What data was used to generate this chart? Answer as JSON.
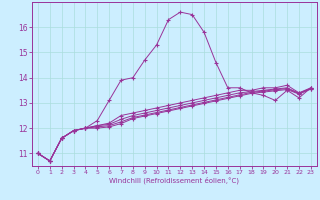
{
  "title": "",
  "xlabel": "Windchill (Refroidissement éolien,°C)",
  "ylabel": "",
  "background_color": "#cceeff",
  "line_color": "#993399",
  "xlim": [
    -0.5,
    23.5
  ],
  "ylim": [
    10.5,
    17.0
  ],
  "xticks": [
    0,
    1,
    2,
    3,
    4,
    5,
    6,
    7,
    8,
    9,
    10,
    11,
    12,
    13,
    14,
    15,
    16,
    17,
    18,
    19,
    20,
    21,
    22,
    23
  ],
  "yticks": [
    11,
    12,
    13,
    14,
    15,
    16
  ],
  "grid_color": "#aadddd",
  "lines": [
    [
      11.0,
      10.7,
      11.6,
      11.9,
      12.0,
      12.3,
      13.1,
      13.9,
      14.0,
      14.7,
      15.3,
      16.3,
      16.6,
      16.5,
      15.8,
      14.6,
      13.6,
      13.6,
      13.4,
      13.3,
      13.1,
      13.5,
      13.2,
      13.6
    ],
    [
      11.0,
      10.7,
      11.6,
      11.9,
      12.0,
      12.1,
      12.2,
      12.5,
      12.6,
      12.7,
      12.8,
      12.9,
      13.0,
      13.1,
      13.2,
      13.3,
      13.4,
      13.5,
      13.5,
      13.6,
      13.6,
      13.7,
      13.4,
      13.6
    ],
    [
      11.0,
      10.7,
      11.6,
      11.9,
      12.0,
      12.1,
      12.15,
      12.35,
      12.5,
      12.6,
      12.7,
      12.8,
      12.9,
      13.0,
      13.1,
      13.2,
      13.3,
      13.4,
      13.45,
      13.5,
      13.55,
      13.6,
      13.38,
      13.58
    ],
    [
      11.0,
      10.7,
      11.6,
      11.9,
      12.0,
      12.05,
      12.1,
      12.25,
      12.42,
      12.52,
      12.62,
      12.72,
      12.82,
      12.92,
      13.02,
      13.12,
      13.22,
      13.32,
      13.42,
      13.47,
      13.52,
      13.57,
      13.37,
      13.57
    ],
    [
      11.0,
      10.7,
      11.6,
      11.9,
      12.0,
      12.0,
      12.05,
      12.18,
      12.38,
      12.48,
      12.58,
      12.68,
      12.78,
      12.88,
      12.98,
      13.08,
      13.18,
      13.28,
      13.38,
      13.43,
      13.48,
      13.53,
      13.35,
      13.55
    ]
  ]
}
